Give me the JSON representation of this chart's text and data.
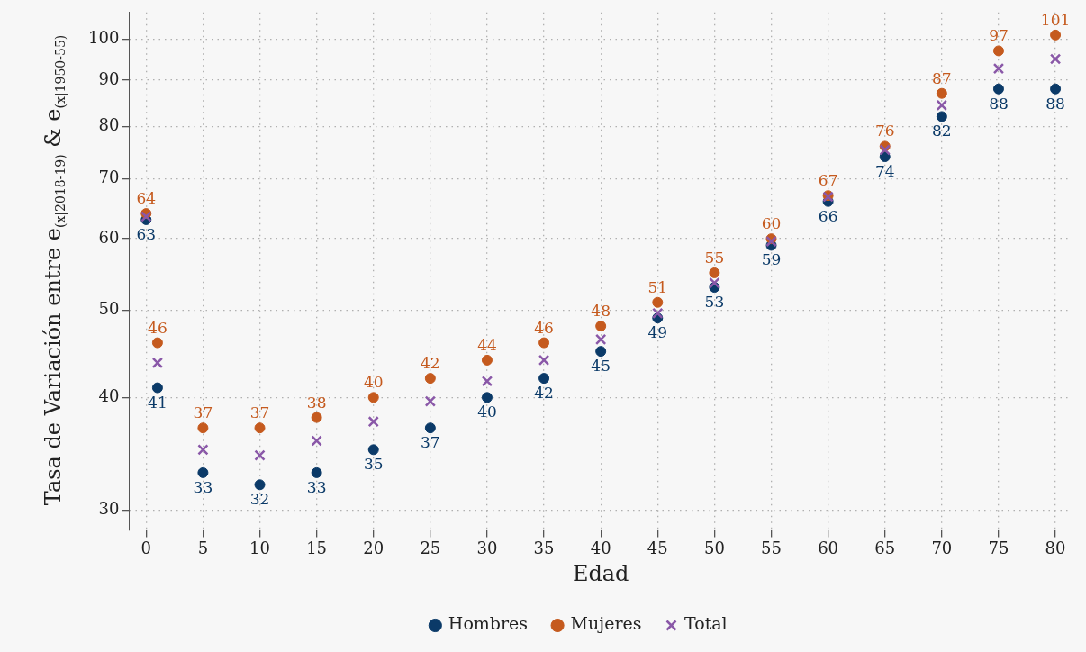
{
  "chart_data": {
    "type": "scatter",
    "xlabel": "Edad",
    "ylabel": "Tasa de Variación entre e$_{(x|2018-19)}$ & e$_{(x|1950-55)}$",
    "x": [
      0,
      1,
      5,
      10,
      15,
      20,
      25,
      30,
      35,
      40,
      45,
      50,
      55,
      60,
      65,
      70,
      75,
      80
    ],
    "series": [
      {
        "name": "Hombres",
        "color": "#0b3a68",
        "marker": "circle",
        "values": [
          63,
          41,
          33,
          32,
          33,
          35,
          37,
          40,
          42,
          45,
          49,
          53,
          59,
          66,
          74,
          82,
          88,
          88
        ],
        "value_labels": [
          "63",
          "41",
          "33",
          "32",
          "33",
          "35",
          "37",
          "40",
          "42",
          "45",
          "49",
          "53",
          "59",
          "66",
          "74",
          "82",
          "88",
          "88"
        ]
      },
      {
        "name": "Mujeres",
        "color": "#c55a1e",
        "marker": "circle",
        "values": [
          64,
          46,
          37,
          37,
          38,
          40,
          42,
          44,
          46,
          48,
          51,
          55,
          60,
          67,
          76,
          87,
          97,
          101
        ],
        "value_labels": [
          "64",
          "46",
          "37",
          "37",
          "38",
          "40",
          "42",
          "44",
          "46",
          "48",
          "51",
          "55",
          "60",
          "67",
          "76",
          "87",
          "97",
          "101"
        ]
      },
      {
        "name": "Total",
        "color": "#8a58a8",
        "marker": "cross",
        "values": [
          63.5,
          43.7,
          35.0,
          34.5,
          35.8,
          37.6,
          39.6,
          41.7,
          44.0,
          46.4,
          49.6,
          53.6,
          59.6,
          66.8,
          75.3,
          84.4,
          92.7,
          95.0
        ]
      }
    ],
    "log": "y",
    "xlim": [
      -1.5,
      81.5
    ],
    "xticks": [
      0,
      5,
      10,
      15,
      20,
      25,
      30,
      35,
      40,
      45,
      50,
      55,
      60,
      65,
      70,
      75,
      80
    ],
    "ylim": [
      28.5,
      107
    ],
    "yticks": [
      30,
      40,
      50,
      60,
      70,
      80,
      90,
      100
    ],
    "grid": true,
    "legend": "bottom"
  }
}
